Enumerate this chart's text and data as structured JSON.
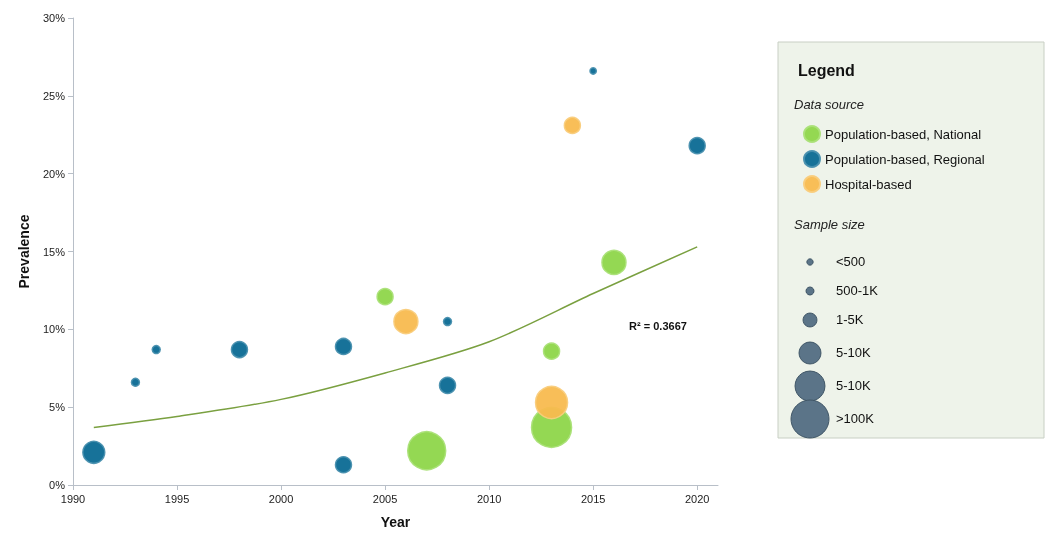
{
  "chart_data": {
    "type": "bubble",
    "xlabel": "Year",
    "ylabel": "Prevalence",
    "legend_title": "Legend",
    "legend": "right",
    "marker": "circle",
    "grid": false,
    "xlim": [
      1990,
      2021
    ],
    "xticks": [
      1990,
      1995,
      2000,
      2005,
      2010,
      2015,
      2020
    ],
    "ylim": [
      0,
      30
    ],
    "yticks": [
      {
        "value": 0,
        "label": "0%"
      },
      {
        "value": 5,
        "label": "5%"
      },
      {
        "value": 10,
        "label": "10%"
      },
      {
        "value": 15,
        "label": "15%"
      },
      {
        "value": 20,
        "label": "20%"
      },
      {
        "value": 25,
        "label": "25%"
      },
      {
        "value": 30,
        "label": "30%"
      }
    ],
    "series": [
      {
        "name": "Population-based, National",
        "color": "#8ed64a",
        "x": [
          2005,
          2007,
          2013,
          2013,
          2016
        ],
        "values": [
          12.1,
          2.2,
          8.6,
          3.7,
          14.3
        ],
        "sizes": [
          0.16,
          0.9,
          0.16,
          1,
          0.36
        ]
      },
      {
        "name": "Population-based, Regional",
        "color": "#0b6a93",
        "x": [
          1991,
          1993,
          1994,
          1998,
          2003,
          2003,
          2008,
          2008,
          2015,
          2020
        ],
        "values": [
          2.1,
          6.6,
          8.7,
          8.7,
          8.9,
          1.3,
          10.5,
          6.4,
          26.6,
          21.8
        ],
        "sizes": [
          0.3,
          0.04,
          0.04,
          0.16,
          0.16,
          0.16,
          0.04,
          0.16,
          0.025,
          0.16
        ]
      },
      {
        "name": "Hospital-based",
        "color": "#f8bb4f",
        "x": [
          2006,
          2013,
          2014
        ],
        "values": [
          10.5,
          5.3,
          23.1
        ],
        "sizes": [
          0.36,
          0.64,
          0.16
        ]
      },
      {
        "type": "line",
        "color": "#7aa040",
        "line_style": "solid",
        "marker": "none",
        "x": [
          1991,
          1995,
          2000,
          2005,
          2010,
          2015,
          2020
        ],
        "values": [
          3.7,
          4.4,
          5.5,
          7.2,
          9.2,
          12.3,
          15.3
        ]
      }
    ],
    "size_legend": [
      {
        "value": 0.025,
        "label": "<500"
      },
      {
        "value": 0.04,
        "label": "500-1K"
      },
      {
        "value": 0.12,
        "label": "1-5K"
      },
      {
        "value": 0.3,
        "label": "5-10K"
      },
      {
        "value": 0.56,
        "label": "5-10K"
      },
      {
        "value": 0.9,
        "label": ">100K"
      }
    ],
    "annotations": [
      "R² = 0.3667",
      "Data source",
      "Sample size"
    ]
  }
}
